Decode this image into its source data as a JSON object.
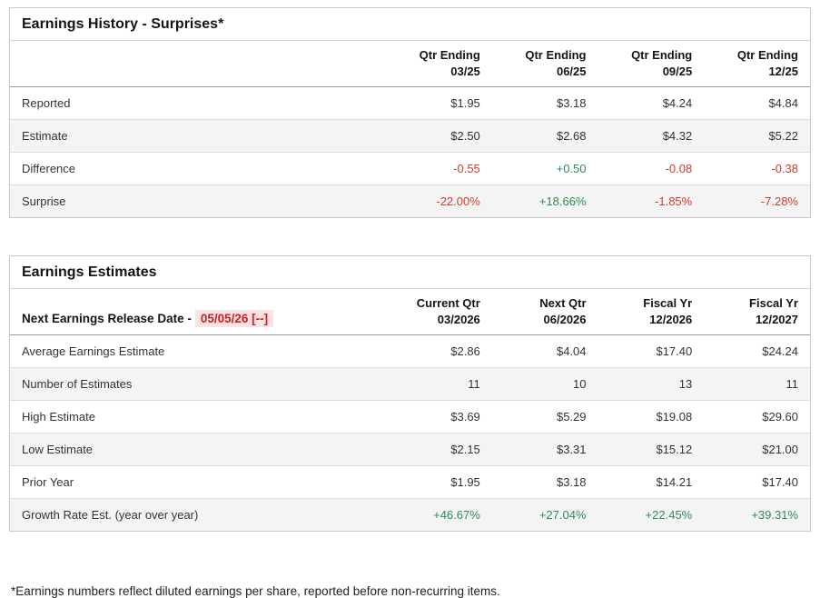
{
  "colors": {
    "positive_green": "#2e8b57",
    "negative_red": "#d33a2e",
    "release_date_text": "#cc1f1f",
    "release_date_background": "#fbe3e3",
    "row_stripe": "#f4f4f4",
    "table_border": "#c9c9c9"
  },
  "earnings_history": {
    "title": "Earnings History - Surprises*",
    "columns": [
      {
        "line1": "Qtr Ending",
        "line2": "03/25"
      },
      {
        "line1": "Qtr Ending",
        "line2": "06/25"
      },
      {
        "line1": "Qtr Ending",
        "line2": "09/25"
      },
      {
        "line1": "Qtr Ending",
        "line2": "12/25"
      }
    ],
    "rows": [
      {
        "label": "Reported",
        "values": [
          "$1.95",
          "$3.18",
          "$4.24",
          "$4.84"
        ]
      },
      {
        "label": "Estimate",
        "values": [
          "$2.50",
          "$2.68",
          "$4.32",
          "$5.22"
        ]
      },
      {
        "label": "Difference",
        "values": [
          "-0.55",
          "+0.50",
          "-0.08",
          "-0.38"
        ]
      },
      {
        "label": "Surprise",
        "values": [
          "-22.00%",
          "+18.66%",
          "-1.85%",
          "-7.28%"
        ]
      }
    ]
  },
  "earnings_estimates": {
    "title": "Earnings Estimates",
    "release_date_label": "Next Earnings Release Date -",
    "release_date_value": "05/05/26 [--]",
    "columns": [
      {
        "line1": "Current Qtr",
        "line2": "03/2026"
      },
      {
        "line1": "Next Qtr",
        "line2": "06/2026"
      },
      {
        "line1": "Fiscal Yr",
        "line2": "12/2026"
      },
      {
        "line1": "Fiscal Yr",
        "line2": "12/2027"
      }
    ],
    "rows": [
      {
        "label": "Average Earnings Estimate",
        "values": [
          "$2.86",
          "$4.04",
          "$17.40",
          "$24.24"
        ]
      },
      {
        "label": "Number of Estimates",
        "values": [
          "11",
          "10",
          "13",
          "11"
        ]
      },
      {
        "label": "High Estimate",
        "values": [
          "$3.69",
          "$5.29",
          "$19.08",
          "$29.60"
        ]
      },
      {
        "label": "Low Estimate",
        "values": [
          "$2.15",
          "$3.31",
          "$15.12",
          "$21.00"
        ]
      },
      {
        "label": "Prior Year",
        "values": [
          "$1.95",
          "$3.18",
          "$14.21",
          "$17.40"
        ]
      },
      {
        "label": "Growth Rate Est. (year over year)",
        "values": [
          "+46.67%",
          "+27.04%",
          "+22.45%",
          "+39.31%"
        ]
      }
    ]
  },
  "footnote": "*Earnings numbers reflect diluted earnings per share, reported before non-recurring items."
}
